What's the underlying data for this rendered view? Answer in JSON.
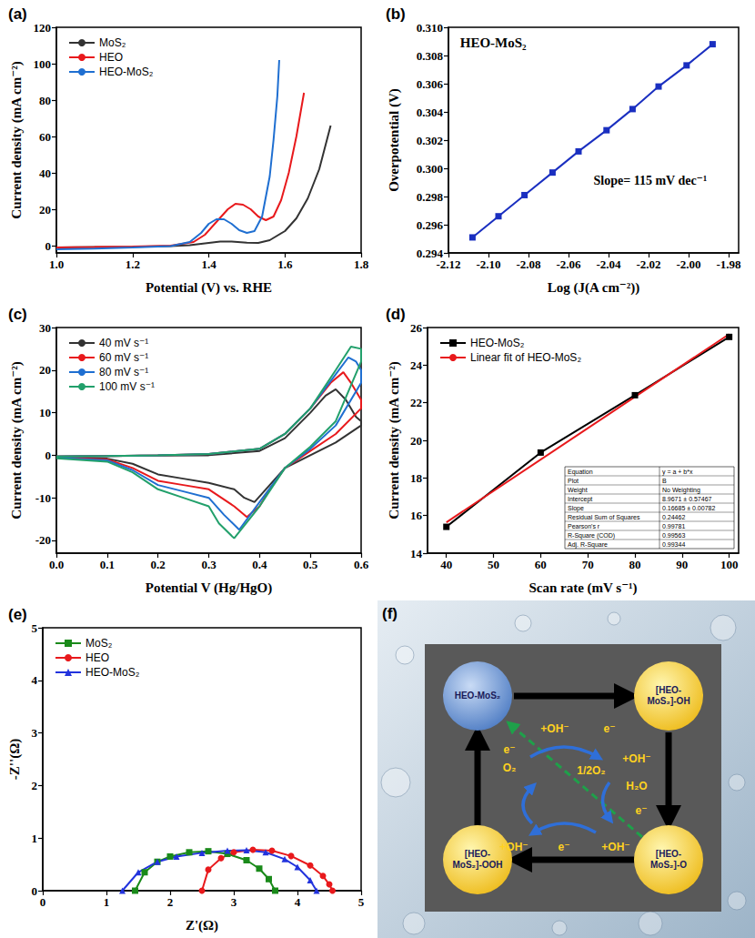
{
  "chart_data": [
    {
      "panel": "(a)",
      "type": "line",
      "x_label": "Potential (V) vs. RHE",
      "y_label": "Current density (mA cm⁻²)",
      "xlim": [
        1.0,
        1.8
      ],
      "xticks": [
        {
          "value": 1,
          "label": "1.0"
        },
        1.2,
        1.4,
        1.6,
        1.8
      ],
      "ylim": [
        -4,
        120
      ],
      "yticks": [
        0,
        20,
        40,
        60,
        80,
        100,
        120
      ],
      "grid": false,
      "legend": "upper left",
      "series": [
        {
          "name": "MoS₂",
          "color": "#333333",
          "marker": "none",
          "x": [
            1.0,
            1.1,
            1.2,
            1.3,
            1.35,
            1.4,
            1.43,
            1.46,
            1.5,
            1.53,
            1.56,
            1.6,
            1.63,
            1.66,
            1.69,
            1.72
          ],
          "values": [
            -1,
            -0.8,
            -0.6,
            -0.3,
            0.3,
            1.5,
            2.2,
            2.3,
            1.6,
            1.5,
            3,
            8,
            15,
            26,
            42,
            66
          ]
        },
        {
          "name": "HEO",
          "color": "#e8191c",
          "marker": "none",
          "x": [
            1.0,
            1.1,
            1.2,
            1.3,
            1.36,
            1.39,
            1.42,
            1.45,
            1.47,
            1.49,
            1.51,
            1.53,
            1.55,
            1.57,
            1.59,
            1.61,
            1.63,
            1.65
          ],
          "values": [
            -1,
            -0.8,
            -0.5,
            0,
            2,
            6,
            13,
            20,
            23,
            22.5,
            20,
            16,
            14,
            16,
            25,
            40,
            60,
            84
          ]
        },
        {
          "name": "HEO-MoS₂",
          "color": "#1f6fd1",
          "marker": "none",
          "x": [
            1.0,
            1.1,
            1.2,
            1.3,
            1.35,
            1.38,
            1.4,
            1.42,
            1.44,
            1.46,
            1.48,
            1.5,
            1.52,
            1.54,
            1.56,
            1.57,
            1.58,
            1.585
          ],
          "values": [
            -2,
            -1.6,
            -1,
            -0.2,
            2,
            7,
            12,
            14.5,
            14.5,
            12,
            8.5,
            7,
            8,
            16,
            38,
            58,
            82,
            102
          ]
        }
      ]
    },
    {
      "panel": "(b)",
      "type": "line",
      "x_label": "Log (J(A cm⁻²))",
      "y_label": "Overpotential (V)",
      "xlim": [
        -2.12,
        -1.975
      ],
      "xticks": [
        -2.12,
        {
          "value": -2.1,
          "label": "-2.10"
        },
        -2.08,
        -2.06,
        -2.04,
        -2.02,
        {
          "value": -2,
          "label": "-2.00"
        },
        -1.98
      ],
      "ylim": [
        0.294,
        0.31
      ],
      "yticks": [
        0.294,
        0.296,
        0.298,
        {
          "value": 0.3,
          "label": "0.300"
        },
        0.302,
        0.304,
        0.306,
        0.308,
        {
          "value": 0.31,
          "label": "0.310"
        }
      ],
      "grid": false,
      "annotations": [
        "HEO-MoS₂",
        "Slope= 115 mV dec⁻¹"
      ],
      "series": [
        {
          "name": "HEO-MoS₂",
          "color": "#1a2fc0",
          "marker": "square",
          "x": [
            -2.108,
            -2.095,
            -2.082,
            -2.068,
            -2.055,
            -2.041,
            -2.028,
            -2.015,
            -2.001,
            -1.988
          ],
          "values": [
            0.2951,
            0.2966,
            0.2981,
            0.2997,
            0.3012,
            0.3027,
            0.3042,
            0.3058,
            0.3073,
            0.3088
          ]
        }
      ]
    },
    {
      "panel": "(c)",
      "type": "line",
      "x_label": "Potential V (Hg/HgO)",
      "y_label": "Current density (mA cm⁻²)",
      "xlim": [
        0,
        0.6
      ],
      "xticks": [
        {
          "value": 0,
          "label": "0.0"
        },
        0.1,
        0.2,
        0.3,
        0.4,
        0.5,
        0.6
      ],
      "ylim": [
        -23,
        30
      ],
      "yticks": [
        -20,
        -10,
        0,
        10,
        20,
        30
      ],
      "grid": false,
      "legend": "upper left",
      "series": [
        {
          "name": "40 mV s⁻¹",
          "color": "#333333",
          "marker": "none",
          "x": [
            0.0,
            0.1,
            0.2,
            0.3,
            0.4,
            0.45,
            0.5,
            0.53,
            0.55,
            0.57,
            0.59,
            0.6,
            0.6,
            0.55,
            0.5,
            0.45,
            0.42,
            0.39,
            0.37,
            0.35,
            0.3,
            0.25,
            0.2,
            0.15,
            0.1,
            0.0
          ],
          "values": [
            -0.3,
            -0.2,
            -0.1,
            0,
            1,
            4,
            10,
            14,
            15.5,
            13,
            9,
            8,
            7,
            3,
            0,
            -3,
            -7,
            -11,
            -10,
            -8,
            -6.5,
            -5.5,
            -4.5,
            -2,
            -0.8,
            -0.5
          ]
        },
        {
          "name": "60 mV s⁻¹",
          "color": "#e8191c",
          "marker": "none",
          "x": [
            0.0,
            0.1,
            0.2,
            0.3,
            0.4,
            0.45,
            0.5,
            0.54,
            0.565,
            0.58,
            0.6,
            0.6,
            0.55,
            0.5,
            0.45,
            0.42,
            0.4,
            0.375,
            0.35,
            0.3,
            0.25,
            0.2,
            0.15,
            0.1,
            0.0
          ],
          "values": [
            -0.3,
            -0.2,
            0,
            0.3,
            1.5,
            5,
            11,
            17,
            19.5,
            17,
            13,
            11,
            5,
            1,
            -3,
            -8,
            -12,
            -14.5,
            -12,
            -8,
            -7,
            -6,
            -3,
            -1,
            -0.5
          ]
        },
        {
          "name": "80 mV s⁻¹",
          "color": "#1f6fd1",
          "marker": "none",
          "x": [
            0.0,
            0.1,
            0.2,
            0.3,
            0.4,
            0.45,
            0.5,
            0.55,
            0.575,
            0.59,
            0.6,
            0.6,
            0.55,
            0.5,
            0.45,
            0.4,
            0.36,
            0.33,
            0.3,
            0.25,
            0.2,
            0.15,
            0.1,
            0.0
          ],
          "values": [
            -0.3,
            -0.2,
            0,
            0.3,
            1.5,
            5,
            11,
            19,
            23,
            22,
            20,
            17,
            7,
            1.5,
            -3,
            -11,
            -17.5,
            -14,
            -10,
            -8.5,
            -7,
            -3.5,
            -1.2,
            -0.6
          ]
        },
        {
          "name": "100 mV s⁻¹",
          "color": "#22a06b",
          "marker": "none",
          "x": [
            0.0,
            0.1,
            0.2,
            0.3,
            0.4,
            0.45,
            0.5,
            0.55,
            0.58,
            0.6,
            0.6,
            0.55,
            0.5,
            0.45,
            0.4,
            0.35,
            0.32,
            0.3,
            0.25,
            0.2,
            0.15,
            0.1,
            0.0
          ],
          "values": [
            -0.3,
            -0.2,
            0,
            0.3,
            1.5,
            5,
            11,
            20,
            25.5,
            25,
            22,
            8,
            2,
            -3,
            -12,
            -19.5,
            -16,
            -12,
            -10,
            -8,
            -4,
            -1.5,
            -0.7
          ]
        }
      ]
    },
    {
      "panel": "(d)",
      "type": "line",
      "x_label": "Scan rate (mV s⁻¹)",
      "y_label": "Current density (mA cm⁻²)",
      "xlim": [
        36,
        102
      ],
      "xticks": [
        40,
        50,
        60,
        70,
        80,
        90,
        100
      ],
      "ylim": [
        14,
        26
      ],
      "yticks": [
        14,
        16,
        18,
        20,
        22,
        24,
        26
      ],
      "grid": false,
      "legend": "upper left",
      "table": {
        "rows": [
          [
            "Equation",
            "y = a + b*x"
          ],
          [
            "Plot",
            "B"
          ],
          [
            "Weight",
            "No Weighting"
          ],
          [
            "Intercept",
            "8.9671 ± 0.57467"
          ],
          [
            "Slope",
            "0.16685 ± 0.00782"
          ],
          [
            "Residual Sum of Squares",
            "0.24462"
          ],
          [
            "Pearson's r",
            "0.99781"
          ],
          [
            "R-Square (COD)",
            "0.99563"
          ],
          [
            "Adj. R-Square",
            "0.99344"
          ]
        ]
      },
      "series": [
        {
          "name": "HEO-MoS₂",
          "color": "#000000",
          "marker": "square",
          "x": [
            40,
            60,
            80,
            100
          ],
          "values": [
            15.4,
            19.35,
            22.4,
            25.5
          ]
        },
        {
          "name": "Linear fit of HEO-MoS₂",
          "color": "#e8191c",
          "marker": "none",
          "x": [
            40,
            100
          ],
          "values": [
            15.64,
            25.65
          ]
        }
      ]
    },
    {
      "panel": "(e)",
      "type": "line",
      "x_label": "Z'(Ω)",
      "y_label": "-Z''(Ω)",
      "xlim": [
        0,
        5
      ],
      "xticks": [
        0,
        1,
        2,
        3,
        4,
        5
      ],
      "ylim": [
        0,
        5
      ],
      "yticks": [
        0,
        1,
        2,
        3,
        4,
        5
      ],
      "grid": false,
      "legend": "upper left",
      "series": [
        {
          "name": "MoS₂",
          "color": "#1a8a1a",
          "marker": "square",
          "x": [
            1.45,
            1.6,
            1.8,
            2.0,
            2.3,
            2.6,
            2.9,
            3.2,
            3.4,
            3.55,
            3.65
          ],
          "values": [
            0,
            0.35,
            0.55,
            0.65,
            0.73,
            0.75,
            0.7,
            0.58,
            0.42,
            0.22,
            0
          ]
        },
        {
          "name": "HEO",
          "color": "#e8191c",
          "marker": "circle",
          "x": [
            2.5,
            2.6,
            2.8,
            3.0,
            3.3,
            3.6,
            3.9,
            4.2,
            4.4,
            4.5,
            4.55
          ],
          "values": [
            0,
            0.4,
            0.62,
            0.73,
            0.78,
            0.76,
            0.66,
            0.48,
            0.28,
            0.12,
            0
          ]
        },
        {
          "name": "HEO-MoS₂",
          "color": "#2233dd",
          "marker": "triangle",
          "x": [
            1.25,
            1.5,
            1.8,
            2.1,
            2.5,
            2.9,
            3.2,
            3.5,
            3.8,
            4.0,
            4.2,
            4.3
          ],
          "values": [
            0,
            0.35,
            0.55,
            0.65,
            0.72,
            0.76,
            0.77,
            0.73,
            0.6,
            0.45,
            0.2,
            0
          ]
        }
      ]
    }
  ],
  "diagram": {
    "panel": "(f)",
    "nodes": [
      "HEO-MoS₂",
      "[HEO-MoS₂]-OH",
      "[HEO-MoS₂]-O",
      "[HEO-MoS₂]-OOH"
    ],
    "labels": [
      "+OH⁻",
      "e⁻",
      "e⁻",
      "O₂",
      "+OH⁻",
      "1/2O₂",
      "H₂O",
      "e⁻",
      "+OH⁻",
      "e⁻",
      "+OH⁻"
    ]
  }
}
